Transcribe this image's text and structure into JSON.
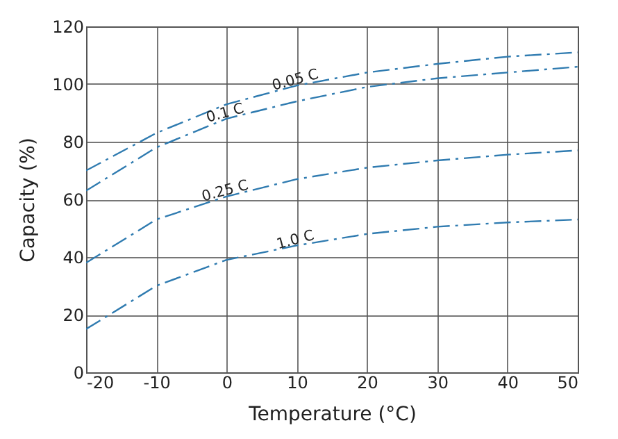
{
  "chart_data": {
    "type": "line",
    "xlabel": "Temperature (°C)",
    "ylabel": "Capacity (%)",
    "x": [
      -20,
      -10,
      0,
      10,
      20,
      30,
      40,
      50
    ],
    "series": [
      {
        "name": "0.05 C",
        "color": "#2f7bb0",
        "values": [
          70,
          83,
          93,
          99.5,
          104,
          107,
          109.5,
          111
        ]
      },
      {
        "name": "0.1 C",
        "color": "#2f7bb0",
        "values": [
          63,
          78,
          88,
          94,
          99,
          102,
          104,
          106
        ]
      },
      {
        "name": "0.25 C",
        "color": "#2f7bb0",
        "values": [
          38,
          53,
          61,
          67,
          71,
          73.5,
          75.5,
          77
        ]
      },
      {
        "name": "1.0 C",
        "color": "#2f7bb0",
        "values": [
          15,
          30,
          39,
          44,
          48,
          50.5,
          52,
          53
        ]
      }
    ],
    "xlim": [
      -20,
      50
    ],
    "xticks": [
      -20,
      -10,
      0,
      10,
      20,
      30,
      40,
      50
    ],
    "ylim": [
      0,
      120
    ],
    "yticks": [
      0,
      20,
      40,
      60,
      80,
      100,
      120
    ],
    "grid": true,
    "line_style": "dashed",
    "marker": "none"
  }
}
